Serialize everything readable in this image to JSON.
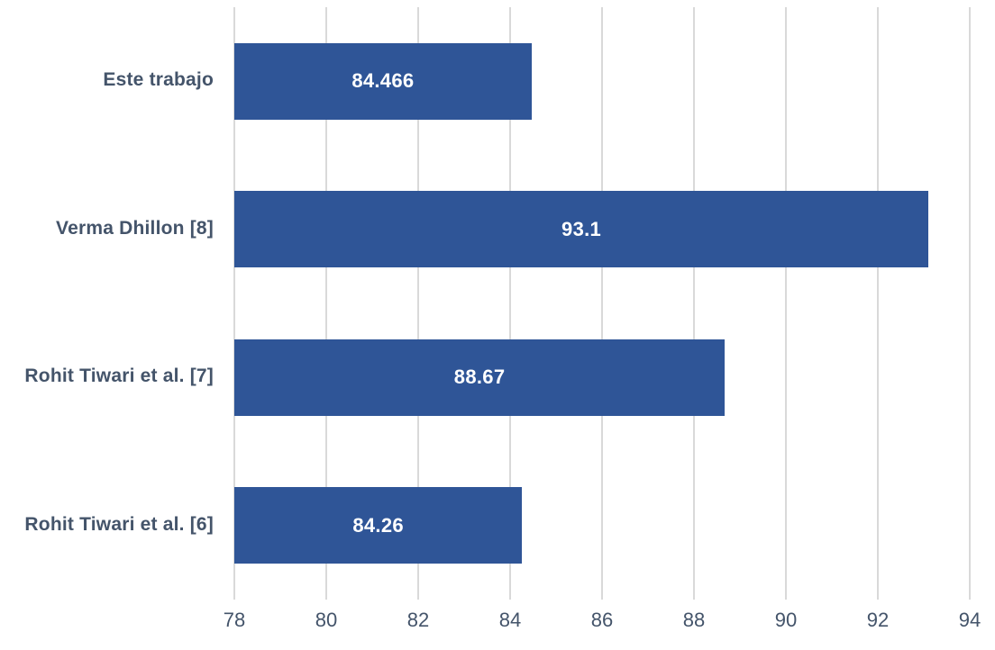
{
  "chart_data": {
    "type": "bar",
    "orientation": "horizontal",
    "title": "",
    "xlabel": "",
    "ylabel": "",
    "categories": [
      "Este trabajo",
      "Verma Dhillon [8]",
      "Rohit Tiwari et al. [7]",
      "Rohit Tiwari et al. [6]"
    ],
    "values": [
      84.466,
      93.1,
      88.67,
      84.26
    ],
    "value_labels": [
      "84.466",
      "93.1",
      "88.67",
      "84.26"
    ],
    "xlim": [
      78,
      94
    ],
    "xticks": [
      78,
      80,
      82,
      84,
      86,
      88,
      90,
      92,
      94
    ],
    "grid": true,
    "legend": false,
    "colors": {
      "bar": "#2F5597",
      "bar_value_text": "#FFFFFF",
      "category_text": "#44546A",
      "tick_text": "#44546A",
      "gridline": "#D9D9D9",
      "background": "#FFFFFF"
    }
  }
}
